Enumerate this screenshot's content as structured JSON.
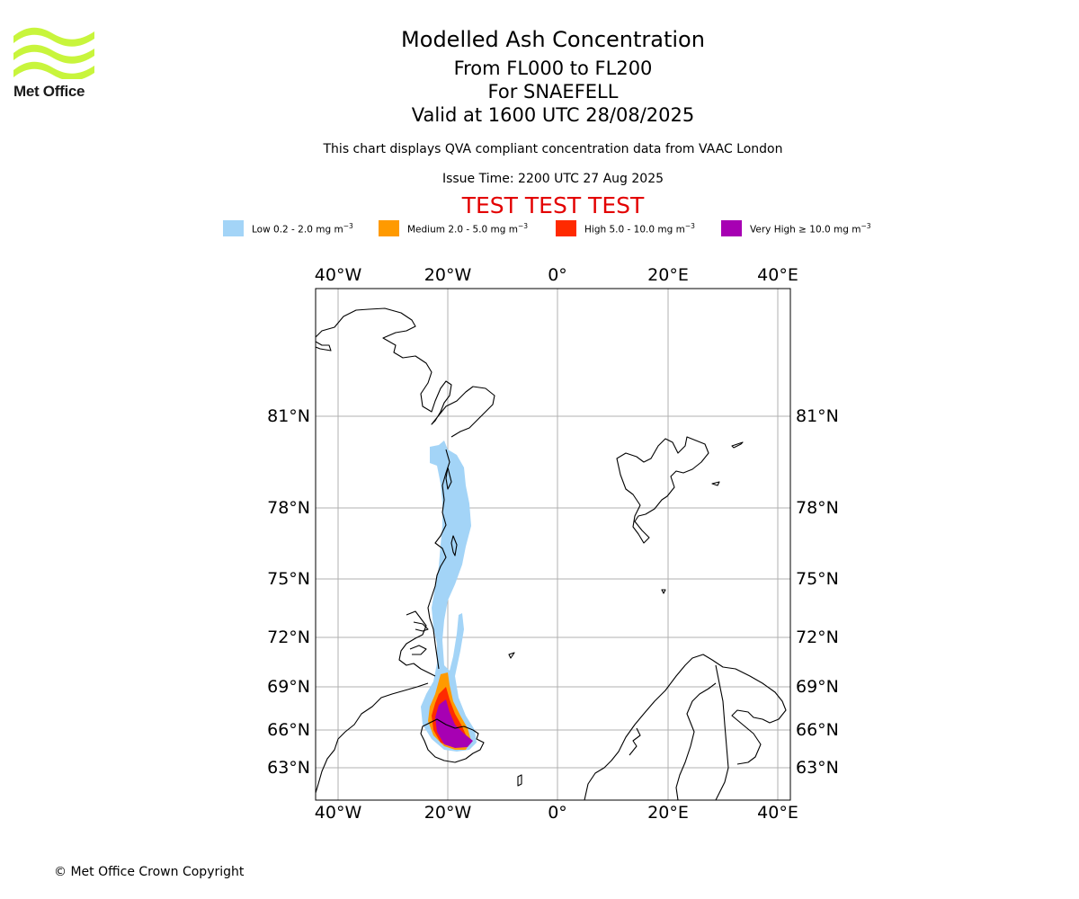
{
  "header": {
    "logo_text": "Met Office",
    "title": "Modelled Ash Concentration",
    "flight_levels": "From FL000 to FL200",
    "volcano": "For SNAEFELL",
    "valid_time": "Valid at 1600 UTC 28/08/2025",
    "description": "This chart displays QVA compliant concentration data from VAAC London",
    "issue_time": "Issue Time: 2200 UTC 27 Aug 2025",
    "test_banner": "TEST TEST TEST"
  },
  "legend": [
    {
      "label": "Low 0.2 - 2.0 mg m",
      "color": "#a3d4f7"
    },
    {
      "label": "Medium 2.0 - 5.0 mg m",
      "color": "#ff9a00"
    },
    {
      "label": "High 5.0 - 10.0 mg m",
      "color": "#ff2a00"
    },
    {
      "label": "Very High ≥ 10.0 mg m",
      "color": "#a700b3"
    }
  ],
  "legend_unit_exponent": "−3",
  "map": {
    "lon_labels": [
      "40°W",
      "20°W",
      "0°",
      "20°E",
      "40°E"
    ],
    "lat_labels": [
      "81°N",
      "78°N",
      "75°N",
      "72°N",
      "69°N",
      "66°N",
      "63°N"
    ],
    "grid": true
  },
  "footer": {
    "copyright": "© Met Office Crown Copyright"
  }
}
